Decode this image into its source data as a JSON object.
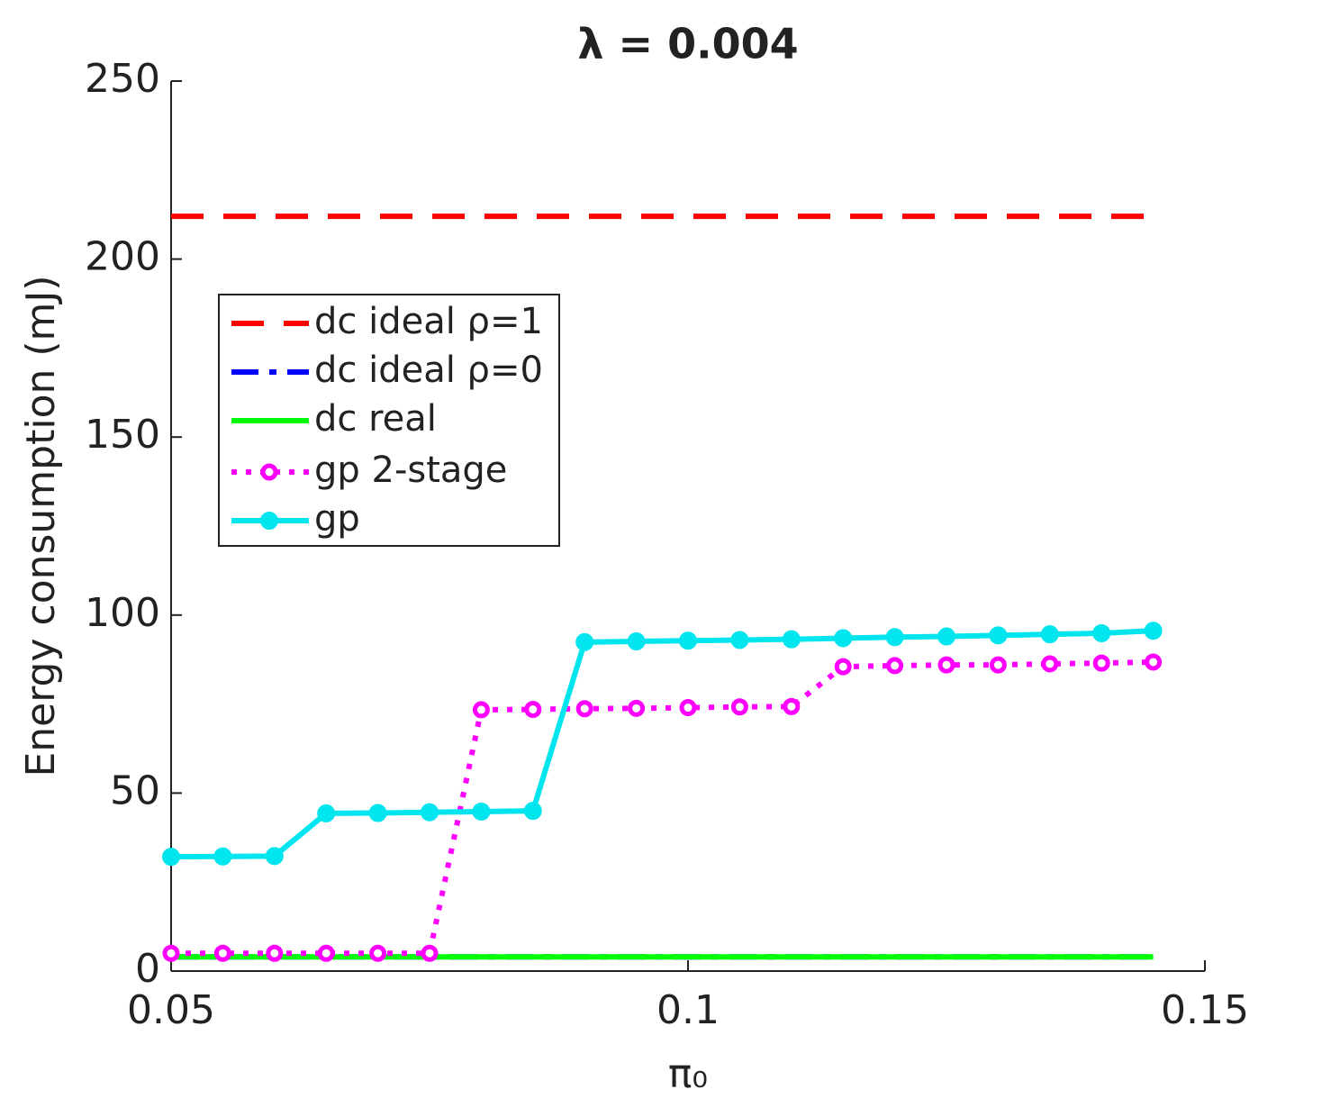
{
  "chart_data": {
    "type": "line",
    "title": "λ = 0.004",
    "xlabel": "π₀",
    "ylabel": "Energy consumption (mJ)",
    "x": [
      0.05,
      0.055,
      0.06,
      0.065,
      0.07,
      0.075,
      0.08,
      0.085,
      0.09,
      0.095,
      0.1,
      0.105,
      0.11,
      0.115,
      0.12,
      0.125,
      0.13,
      0.135,
      0.14,
      0.145
    ],
    "xlim": [
      0.05,
      0.15
    ],
    "xticks": [
      0.05,
      0.1,
      0.15
    ],
    "ylim": [
      0,
      250
    ],
    "yticks": [
      0,
      50,
      100,
      150,
      200,
      250
    ],
    "legend": "upper left",
    "series": [
      {
        "name": "dc ideal ρ=1",
        "color": "#ff0000",
        "linestyle": "dashed",
        "marker": "none",
        "values": [
          212,
          212,
          212,
          212,
          212,
          212,
          212,
          212,
          212,
          212,
          212,
          212,
          212,
          212,
          212,
          212,
          212,
          212,
          212,
          212
        ]
      },
      {
        "name": "dc ideal ρ=0",
        "color": "#0000ff",
        "linestyle": "dashdot",
        "marker": "none",
        "values": [
          4,
          4,
          4,
          4,
          4,
          4,
          4,
          4,
          4,
          4,
          4,
          4,
          4,
          4,
          4,
          4,
          4,
          4,
          4,
          4
        ]
      },
      {
        "name": "dc real",
        "color": "#00ff00",
        "linestyle": "solid",
        "marker": "none",
        "values": [
          4,
          4,
          4,
          4,
          4,
          4,
          4,
          4,
          4,
          4,
          4,
          4,
          4,
          4,
          4,
          4,
          4,
          4,
          4,
          4
        ]
      },
      {
        "name": "gp 2-stage",
        "color": "#ff00ff",
        "linestyle": "dotted",
        "marker": "open-circle",
        "values": [
          5,
          5,
          5,
          5,
          5,
          5,
          73.4,
          73.5,
          73.7,
          73.8,
          74,
          74.2,
          74.3,
          85.5,
          85.8,
          86,
          86,
          86.3,
          86.5,
          86.8
        ]
      },
      {
        "name": "gp",
        "color": "#00e5ee",
        "linestyle": "solid",
        "marker": "filled-circle",
        "values": [
          32.1,
          32.2,
          32.3,
          44.3,
          44.4,
          44.6,
          44.8,
          45,
          92.4,
          92.6,
          92.8,
          93,
          93.2,
          93.5,
          93.8,
          94,
          94.3,
          94.6,
          94.9,
          95.6
        ]
      }
    ]
  }
}
